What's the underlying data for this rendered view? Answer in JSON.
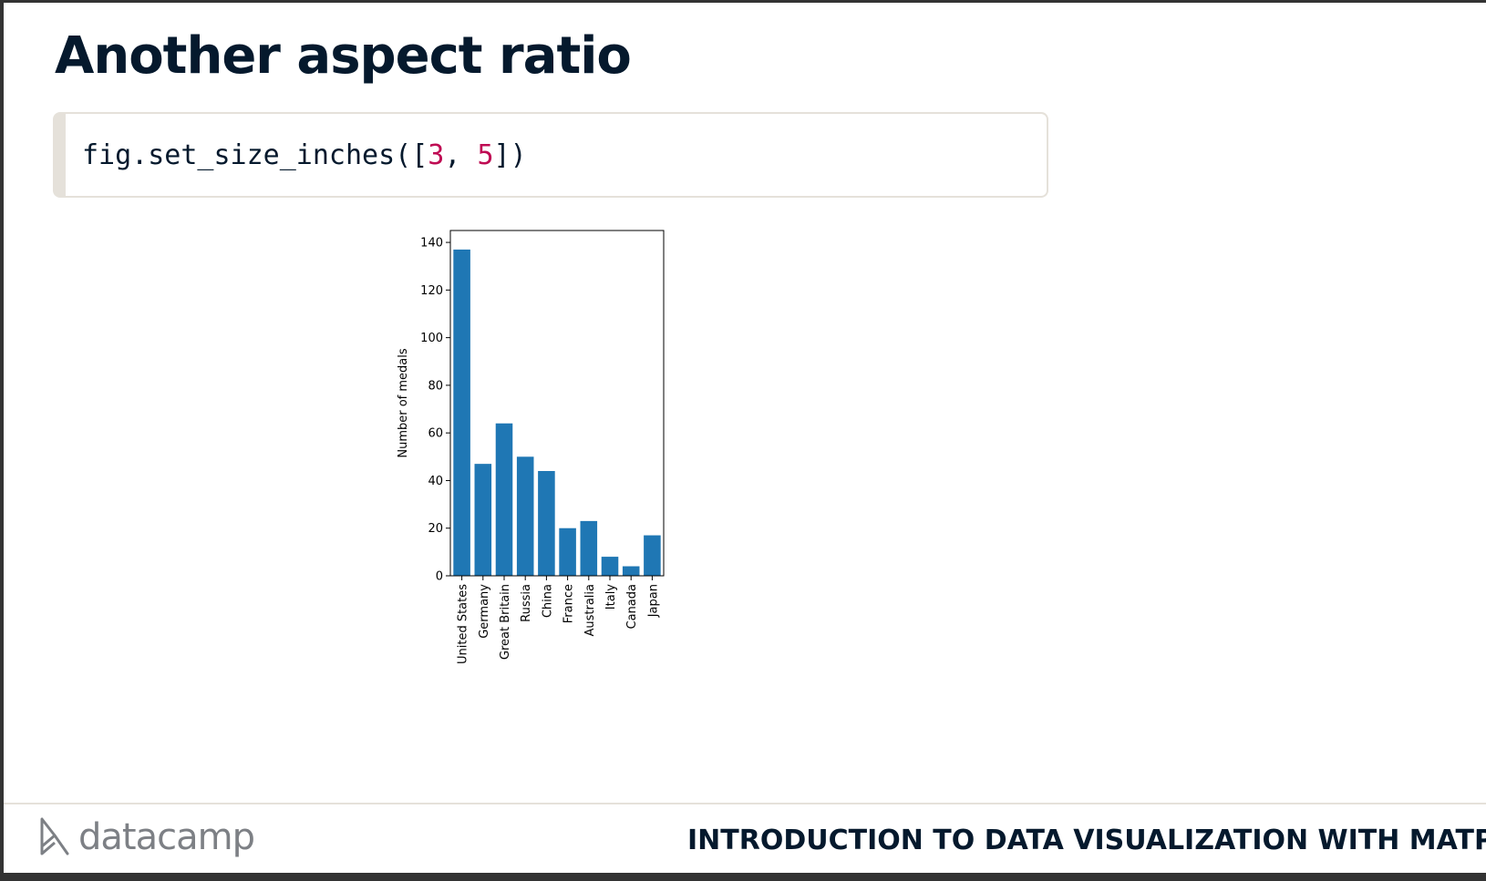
{
  "slide": {
    "title": "Another aspect ratio"
  },
  "code": {
    "prefix": "fig.set_size_inches([",
    "arg1": "3",
    "sep": ", ",
    "arg2": "5",
    "suffix": "])"
  },
  "chart_data": {
    "type": "bar",
    "categories": [
      "United States",
      "Germany",
      "Great Britain",
      "Russia",
      "China",
      "France",
      "Australia",
      "Italy",
      "Canada",
      "Japan"
    ],
    "values": [
      137,
      47,
      64,
      50,
      44,
      20,
      23,
      8,
      4,
      17
    ],
    "ylabel": "Number of medals",
    "xlabel": "",
    "ylim": [
      0,
      145
    ],
    "yticks": [
      0,
      20,
      40,
      60,
      80,
      100,
      120,
      140
    ],
    "bar_color": "#1f77b4",
    "grid": false
  },
  "footer": {
    "logo_text": "datacamp",
    "course_title": "INTRODUCTION TO DATA VISUALIZATION WITH MATPLOTLIB",
    "logo_icon": "datacamp-logo-icon"
  },
  "colors": {
    "title": "#05192d",
    "number_literal": "#bf0b53",
    "code_border": "#e5e1da",
    "logo_gray": "#7d8085"
  }
}
